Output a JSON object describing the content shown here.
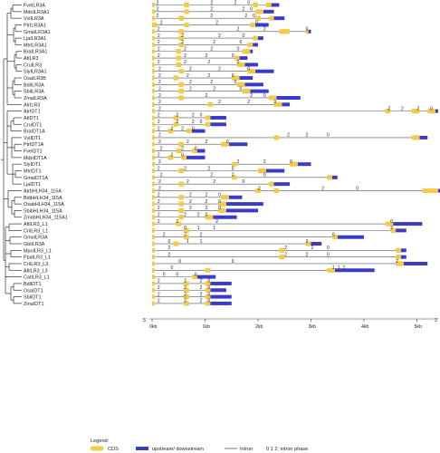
{
  "colors": {
    "cds": "#f5c94a",
    "utr": "#3a3acb",
    "intron": "#555555",
    "tree": "#333333"
  },
  "axis": {
    "prime5": "5'",
    "prime3": "3'",
    "ticks": [
      "0kb",
      "1kb",
      "2kb",
      "3kb",
      "4kb",
      "5kb",
      "6kb",
      "7kb"
    ]
  },
  "legend": {
    "title": "Legend:",
    "cds": "CDS",
    "utr": "upstream/ downstream",
    "intron": "Intron",
    "phase": "0 1 2: intron phase"
  },
  "genes": [
    {
      "name": "FveILR3A",
      "phases": [
        "2",
        "2",
        "2",
        "0"
      ]
    },
    {
      "name": "MdoILR3A1",
      "phases": [
        "2",
        "2",
        "2",
        "0"
      ]
    },
    {
      "name": "VviILR3A",
      "phases": [
        "2",
        "2",
        "2",
        "0"
      ]
    },
    {
      "name": "PtrILR3A1",
      "phases": [
        "2",
        "2",
        "0"
      ]
    },
    {
      "name": "GmaILR3A1",
      "phases": [
        "2",
        "2",
        "2",
        "0"
      ]
    },
    {
      "name": "LjaILR3A1",
      "phases": [
        "2",
        "2",
        "2",
        "0"
      ]
    },
    {
      "name": "MtrILR3A1",
      "phases": [
        "2",
        "2",
        "2",
        "0"
      ]
    },
    {
      "name": "BraILR3A1",
      "phases": [
        "2",
        "2",
        "2",
        "0"
      ]
    },
    {
      "name": "AtILR3",
      "phases": [
        "2",
        "2",
        "2",
        "0"
      ]
    },
    {
      "name": "CruILR3",
      "phases": [
        "2",
        "2",
        "2",
        "0"
      ]
    },
    {
      "name": "SlyILR3A1",
      "phases": [
        "2",
        "2",
        "2",
        "0"
      ]
    },
    {
      "name": "OsaILR3B",
      "phases": [
        "2",
        "2",
        "2",
        "0"
      ]
    },
    {
      "name": "BdiILR3A",
      "phases": [
        "2",
        "2",
        "2",
        "0"
      ]
    },
    {
      "name": "SbiILR3A",
      "phases": [
        "2",
        "2",
        "2",
        "0"
      ]
    },
    {
      "name": "ZmaILR3A",
      "phases": [
        "2",
        "2",
        "2",
        "0"
      ]
    },
    {
      "name": "AtrILR3",
      "phases": [
        "2",
        "2",
        "2",
        "0"
      ]
    },
    {
      "name": "AtrIDT1",
      "phases": [
        "2",
        "2",
        "2",
        "2",
        "0"
      ]
    },
    {
      "name": "AtIDT1",
      "phases": [
        "2",
        "2",
        "2",
        "0"
      ]
    },
    {
      "name": "CruIDT1",
      "phases": [
        "2",
        "2",
        "2",
        "0"
      ]
    },
    {
      "name": "BraIDT1A",
      "phases": [
        "2",
        "2",
        "2",
        "0"
      ]
    },
    {
      "name": "VviIDT1",
      "phases": [
        "2",
        "2",
        "2",
        "0"
      ]
    },
    {
      "name": "PtrIDT1A",
      "phases": [
        "2",
        "2",
        "2",
        "0"
      ]
    },
    {
      "name": "FveIDT1",
      "phases": [
        "2",
        "2",
        "0"
      ]
    },
    {
      "name": "MdoIDT1A",
      "phases": [
        "2",
        "2",
        "0"
      ]
    },
    {
      "name": "SlyIDT1",
      "phases": [
        "2",
        "2",
        "2",
        "0"
      ]
    },
    {
      "name": "MtrIDT1",
      "phases": [
        "2",
        "2",
        "2",
        "0"
      ]
    },
    {
      "name": "GmaIDT1A",
      "phases": [
        "2",
        "2",
        "2",
        "0"
      ]
    },
    {
      "name": "LjaIDT1",
      "phases": [
        "2",
        "2",
        "2",
        "0"
      ]
    },
    {
      "name": "AtrbHLH34_115A",
      "phases": [
        "2",
        "2",
        "2",
        "0"
      ]
    },
    {
      "name": "BdibHLH34_115A",
      "phases": [
        "2",
        "2",
        "2",
        "0"
      ]
    },
    {
      "name": "OsabHLH34_115A",
      "phases": [
        "2",
        "2",
        "2",
        "0"
      ]
    },
    {
      "name": "SbibHLH34_115A",
      "phases": [
        "2",
        "2",
        "2",
        "0"
      ]
    },
    {
      "name": "ZmabHLH34_115A1",
      "phases": [
        "2",
        "2",
        "2",
        "0"
      ]
    },
    {
      "name": "AfiILR3_L1",
      "phases": [
        "2",
        "2",
        "2",
        "0"
      ]
    },
    {
      "name": "CriILR3_L1",
      "phases": [
        "0",
        "1",
        "1",
        "2"
      ]
    },
    {
      "name": "GmoILR3A",
      "phases": [
        "2",
        "2",
        "2",
        "0"
      ]
    },
    {
      "name": "GbiILR3A",
      "phases": [
        "0",
        "1",
        "1",
        "2"
      ]
    },
    {
      "name": "MpoILR3_L1",
      "phases": [
        "2",
        "2",
        "2",
        "0"
      ]
    },
    {
      "name": "PpaILR3_L1",
      "phases": [
        "2",
        "2",
        "2",
        "0"
      ]
    },
    {
      "name": "CriILR3_L3",
      "phases": [
        "0",
        "0",
        "2"
      ]
    },
    {
      "name": "AfiILR3_L3",
      "phases": [
        "0",
        "1",
        "1",
        "1"
      ]
    },
    {
      "name": "CatILR3_L1",
      "phases": [
        "0",
        "0",
        "0"
      ]
    },
    {
      "name": "BdiIDT1",
      "phases": [
        "2",
        "2",
        "2",
        "0"
      ]
    },
    {
      "name": "OsaIDT1",
      "phases": [
        "2",
        "2",
        "2",
        "0"
      ]
    },
    {
      "name": "SbiIDT1",
      "phases": [
        "2",
        "2",
        "2",
        "0"
      ]
    },
    {
      "name": "ZmaIDT1",
      "phases": [
        "2",
        "2",
        "2",
        "0"
      ]
    }
  ]
}
